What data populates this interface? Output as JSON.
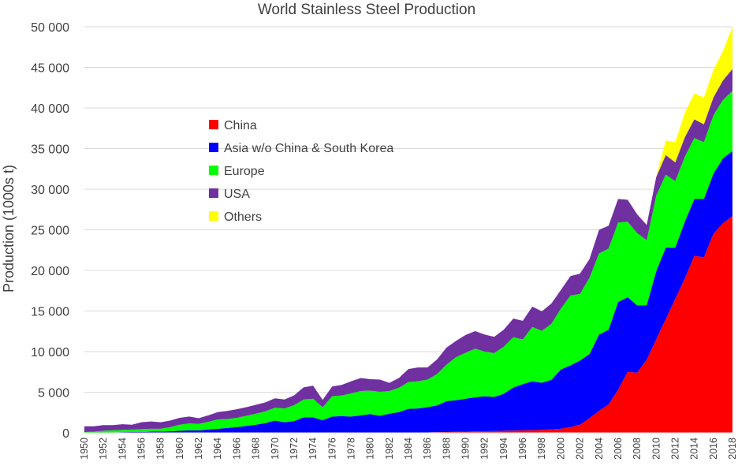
{
  "chart_data": {
    "type": "area",
    "stacked": true,
    "title": "World Stainless Steel Production",
    "xlabel": "",
    "ylabel": "Production (1000s t)",
    "xlim": [
      1950,
      2018
    ],
    "ylim": [
      0,
      50000
    ],
    "grid": true,
    "legend_position": "upper-left inside plot",
    "y_ticks": [
      {
        "value": 0,
        "label": "0"
      },
      {
        "value": 5000,
        "label": "5 000"
      },
      {
        "value": 10000,
        "label": "10 000"
      },
      {
        "value": 15000,
        "label": "15 000"
      },
      {
        "value": 20000,
        "label": "20 000"
      },
      {
        "value": 25000,
        "label": "25 000"
      },
      {
        "value": 30000,
        "label": "30 000"
      },
      {
        "value": 35000,
        "label": "35 000"
      },
      {
        "value": 40000,
        "label": "40 000"
      },
      {
        "value": 45000,
        "label": "45 000"
      },
      {
        "value": 50000,
        "label": "50 000"
      }
    ],
    "x_ticks": [
      1950,
      1952,
      1954,
      1956,
      1958,
      1960,
      1962,
      1964,
      1966,
      1968,
      1970,
      1972,
      1974,
      1976,
      1978,
      1980,
      1982,
      1984,
      1986,
      1988,
      1990,
      1992,
      1994,
      1996,
      1998,
      2000,
      2002,
      2004,
      2006,
      2008,
      2010,
      2012,
      2014,
      2016,
      2018
    ],
    "x": [
      1950,
      1951,
      1952,
      1953,
      1954,
      1955,
      1956,
      1957,
      1958,
      1959,
      1960,
      1961,
      1962,
      1963,
      1964,
      1965,
      1966,
      1967,
      1968,
      1969,
      1970,
      1971,
      1972,
      1973,
      1974,
      1975,
      1976,
      1977,
      1978,
      1979,
      1980,
      1981,
      1982,
      1983,
      1984,
      1985,
      1986,
      1987,
      1988,
      1989,
      1990,
      1991,
      1992,
      1993,
      1994,
      1995,
      1996,
      1997,
      1998,
      1999,
      2000,
      2001,
      2002,
      2003,
      2004,
      2005,
      2006,
      2007,
      2008,
      2009,
      2010,
      2011,
      2012,
      2013,
      2014,
      2015,
      2016,
      2017,
      2018
    ],
    "series": [
      {
        "name": "China",
        "color": "#ff0000",
        "values": [
          0,
          0,
          0,
          0,
          0,
          0,
          0,
          0,
          0,
          0,
          0,
          0,
          0,
          0,
          0,
          0,
          0,
          0,
          0,
          0,
          0,
          0,
          0,
          0,
          0,
          0,
          0,
          0,
          0,
          0,
          0,
          0,
          0,
          0,
          0,
          0,
          50,
          80,
          100,
          120,
          150,
          170,
          200,
          220,
          250,
          270,
          300,
          330,
          360,
          420,
          500,
          700,
          1000,
          1800,
          2700,
          3500,
          5300,
          7500,
          7400,
          9000,
          11500,
          14000,
          16500,
          19000,
          21800,
          21600,
          24500,
          25800,
          26700
        ]
      },
      {
        "name": "Asia w/o China & South Korea",
        "color": "#0000ff",
        "values": [
          0,
          0,
          50,
          50,
          80,
          100,
          100,
          150,
          150,
          200,
          250,
          300,
          300,
          400,
          500,
          600,
          700,
          850,
          1000,
          1200,
          1500,
          1300,
          1450,
          1900,
          1900,
          1550,
          2000,
          2050,
          2000,
          2150,
          2300,
          2100,
          2350,
          2550,
          2950,
          3000,
          3100,
          3300,
          3800,
          3900,
          4050,
          4200,
          4300,
          4200,
          4550,
          5300,
          5700,
          6000,
          5800,
          6100,
          7300,
          7600,
          7900,
          7900,
          9400,
          9200,
          10800,
          9200,
          8300,
          6700,
          8400,
          8800,
          6300,
          7000,
          7000,
          7200,
          7400,
          8000,
          8000
        ]
      },
      {
        "name": "Europe",
        "color": "#00ff00",
        "values": [
          100,
          150,
          200,
          250,
          280,
          300,
          350,
          350,
          350,
          500,
          750,
          850,
          800,
          950,
          1150,
          1100,
          1150,
          1250,
          1350,
          1450,
          1600,
          1700,
          1950,
          2200,
          2300,
          1600,
          2500,
          2550,
          2850,
          3000,
          2900,
          2950,
          2800,
          3000,
          3300,
          3350,
          3400,
          3850,
          4500,
          5300,
          5650,
          6000,
          5500,
          5400,
          5800,
          6200,
          5500,
          6700,
          6400,
          6900,
          7500,
          8600,
          8200,
          9400,
          10000,
          10000,
          9800,
          9300,
          8900,
          8000,
          9300,
          9000,
          8200,
          8000,
          7500,
          7000,
          7200,
          7200,
          7400
        ]
      },
      {
        "name": "USA",
        "color": "#7030a0",
        "values": [
          700,
          650,
          700,
          650,
          700,
          600,
          850,
          900,
          800,
          800,
          850,
          850,
          700,
          800,
          900,
          1000,
          1050,
          1050,
          1100,
          1100,
          1150,
          1100,
          1200,
          1500,
          1600,
          900,
          1200,
          1300,
          1500,
          1600,
          1400,
          1500,
          1000,
          1200,
          1600,
          1700,
          1500,
          1800,
          2100,
          2000,
          2200,
          2150,
          2100,
          2000,
          2100,
          2300,
          2300,
          2500,
          2400,
          2500,
          2300,
          2400,
          2500,
          2300,
          2900,
          2800,
          2900,
          2700,
          2300,
          1900,
          2300,
          2400,
          2300,
          2400,
          2300,
          2200,
          2200,
          2400,
          2700
        ]
      },
      {
        "name": "Others",
        "color": "#ffff00",
        "values": [
          0,
          0,
          0,
          0,
          0,
          0,
          0,
          0,
          0,
          0,
          0,
          0,
          0,
          0,
          0,
          0,
          0,
          0,
          0,
          0,
          0,
          0,
          0,
          0,
          0,
          0,
          0,
          0,
          0,
          0,
          0,
          0,
          0,
          0,
          0,
          0,
          0,
          0,
          0,
          0,
          0,
          0,
          0,
          0,
          0,
          0,
          0,
          0,
          0,
          0,
          0,
          0,
          0,
          0,
          0,
          0,
          0,
          0,
          0,
          0,
          0,
          1800,
          2500,
          3000,
          3200,
          3300,
          3400,
          3600,
          5200
        ]
      }
    ]
  }
}
